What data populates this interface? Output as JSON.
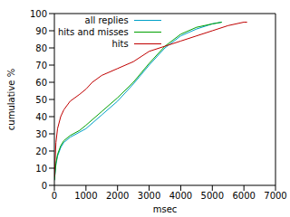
{
  "chart_data": {
    "type": "line",
    "xlabel": "msec",
    "ylabel": "cumulative %",
    "xlim": [
      0,
      7000
    ],
    "xticks": [
      0,
      1000,
      2000,
      3000,
      4000,
      5000,
      6000,
      7000
    ],
    "ylim": [
      0,
      100
    ],
    "yticks": [
      0,
      10,
      20,
      30,
      40,
      50,
      60,
      70,
      80,
      90,
      100
    ],
    "grid": false,
    "legend": "upper left",
    "series": [
      {
        "name": "all replies",
        "color": "#00a0c8",
        "x": [
          0,
          50,
          100,
          200,
          300,
          500,
          800,
          1000,
          1500,
          2000,
          2500,
          3000,
          3500,
          4000,
          4500,
          5000,
          5300
        ],
        "values": [
          3,
          12,
          17,
          22,
          25,
          28,
          31,
          33,
          41,
          49,
          59,
          70,
          80,
          87,
          91,
          94,
          95
        ]
      },
      {
        "name": "hits and misses",
        "color": "#00a000",
        "x": [
          0,
          50,
          100,
          200,
          300,
          500,
          800,
          1000,
          1500,
          2000,
          2500,
          3000,
          3500,
          4000,
          4500,
          5000,
          5300
        ],
        "values": [
          3,
          13,
          18,
          23,
          26,
          29,
          32,
          35,
          43,
          51,
          60,
          71,
          81,
          88,
          92,
          94,
          95
        ]
      },
      {
        "name": "hits",
        "color": "#c00000",
        "x": [
          0,
          50,
          100,
          200,
          300,
          500,
          800,
          1000,
          1200,
          1500,
          2000,
          2500,
          3000,
          3500,
          4000,
          4500,
          5000,
          5500,
          6000,
          6100
        ],
        "values": [
          5,
          25,
          33,
          40,
          44,
          49,
          53,
          56,
          60,
          64,
          68,
          72,
          78,
          81,
          84,
          87,
          90,
          93,
          95,
          95
        ]
      }
    ]
  }
}
